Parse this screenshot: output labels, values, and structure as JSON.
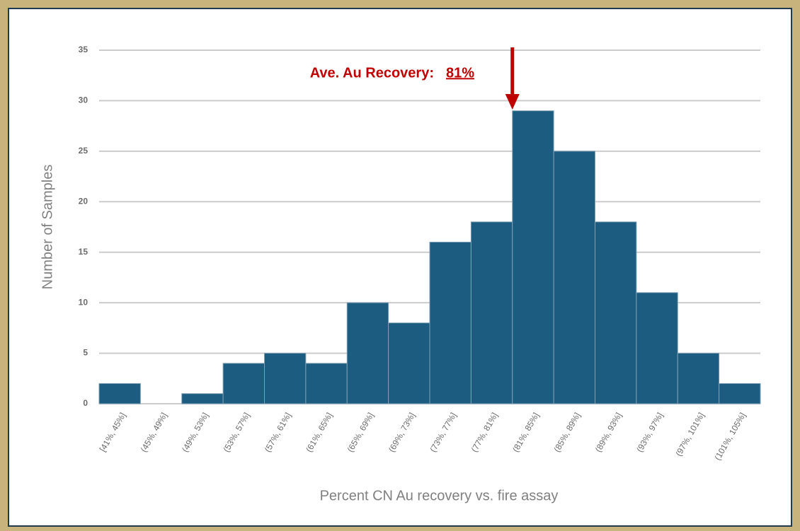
{
  "chart_data": {
    "type": "bar",
    "categories": [
      "[41%, 45%]",
      "(45%, 49%]",
      "(49%, 53%]",
      "(53%, 57%]",
      "(57%, 61%]",
      "(61%, 65%]",
      "(65%, 69%]",
      "(69%, 73%]",
      "(73%, 77%]",
      "(77%, 81%]",
      "(81%, 85%]",
      "(85%, 89%]",
      "(89%, 93%]",
      "(93%, 97%]",
      "(97%, 101%]",
      "(101%, 105%]"
    ],
    "values": [
      2,
      0,
      1,
      4,
      5,
      4,
      10,
      8,
      16,
      18,
      29,
      25,
      18,
      11,
      5,
      2
    ],
    "color": "#1b5c80",
    "ylim": [
      0,
      35
    ],
    "yticks": [
      0,
      5,
      10,
      15,
      20,
      25,
      30,
      35
    ],
    "grid": true,
    "x_label": "Percent CN Au recovery vs. fire assay",
    "y_label": "Number of Samples",
    "annotation": {
      "text": "Ave. Au Recovery:",
      "value": "81%"
    }
  }
}
